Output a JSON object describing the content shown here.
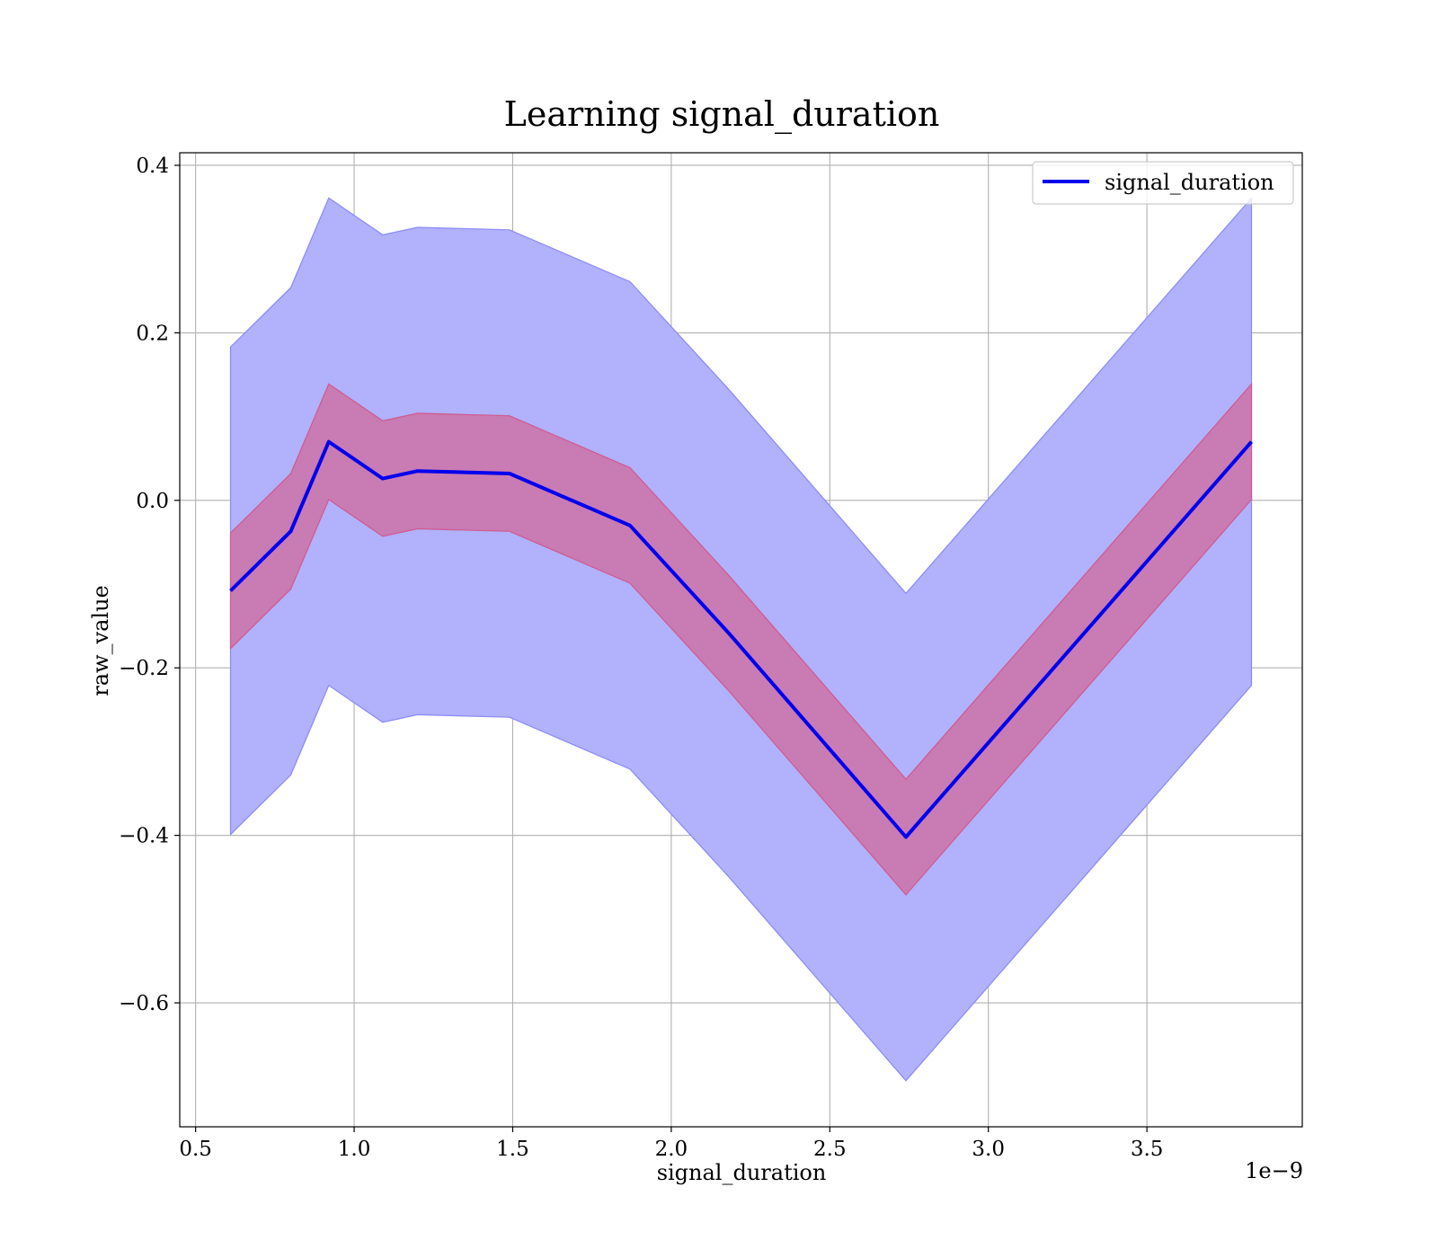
{
  "chart_data": {
    "type": "line",
    "title": "Learning signal_duration",
    "xlabel": "signal_duration",
    "ylabel": "raw_value",
    "x_offset_label": "1e−9",
    "xlim": [
      0.45,
      3.99
    ],
    "ylim": [
      -0.748,
      0.415
    ],
    "x_ticks": [
      0.5,
      1.0,
      1.5,
      2.0,
      2.5,
      3.0,
      3.5
    ],
    "x_tick_labels": [
      "0.5",
      "1.0",
      "1.5",
      "2.0",
      "2.5",
      "3.0",
      "3.5"
    ],
    "y_ticks": [
      0.4,
      0.2,
      0.0,
      -0.2,
      -0.4,
      -0.6
    ],
    "y_tick_labels": [
      "0.4",
      "0.2",
      "0.0",
      "−0.2",
      "−0.4",
      "−0.6"
    ],
    "grid": true,
    "legend_position": "top-right",
    "x": [
      0.61,
      0.8,
      0.92,
      1.09,
      1.2,
      1.49,
      1.87,
      2.18,
      2.74,
      3.83
    ],
    "series": [
      {
        "name": "signal_duration",
        "color": "#0000ee",
        "values": [
          -0.108,
          -0.037,
          0.07,
          0.026,
          0.035,
          0.032,
          -0.03,
          -0.158,
          -0.402,
          0.07
        ],
        "band_outer_upper": [
          0.183,
          0.254,
          0.361,
          0.317,
          0.326,
          0.323,
          0.261,
          0.133,
          -0.111,
          0.361
        ],
        "band_outer_lower": [
          -0.399,
          -0.328,
          -0.221,
          -0.265,
          -0.256,
          -0.259,
          -0.321,
          -0.449,
          -0.693,
          -0.221
        ],
        "band_inner_upper": [
          -0.039,
          0.032,
          0.139,
          0.095,
          0.104,
          0.101,
          0.039,
          -0.089,
          -0.333,
          0.139
        ],
        "band_inner_lower": [
          -0.177,
          -0.106,
          0.001,
          -0.043,
          -0.034,
          -0.037,
          -0.099,
          -0.227,
          -0.471,
          0.001
        ]
      }
    ],
    "colors": {
      "line": "#0000ee",
      "outer_band": "#b1b1fc",
      "outer_band_edge": "#8a8af5",
      "inner_band": "#c97bb3",
      "inner_band_edge": "#d05a8e"
    }
  }
}
